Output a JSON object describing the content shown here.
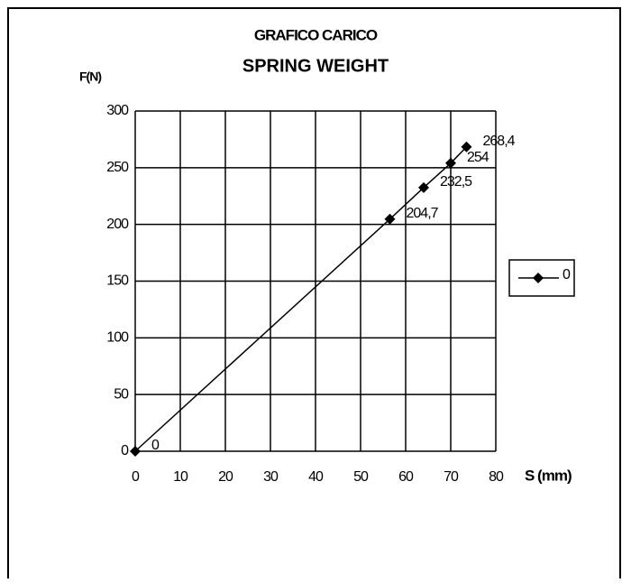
{
  "chart_data": {
    "type": "line",
    "title": "GRAFICO CARICO",
    "subtitle": "SPRING WEIGHT",
    "y_label": "F(N)",
    "x_label": "S (mm)",
    "x": [
      0,
      56.5,
      64,
      70,
      73.5
    ],
    "series": [
      {
        "name": "0",
        "color": "#000000",
        "values": [
          0,
          204.7,
          232.5,
          254,
          268.4
        ],
        "value_labels": [
          "0",
          "204,7",
          "232,5",
          "254",
          "268,4"
        ]
      }
    ],
    "xlim": [
      0,
      80
    ],
    "xticks": [
      0,
      10,
      20,
      30,
      40,
      50,
      60,
      70,
      80
    ],
    "ylim": [
      0,
      300
    ],
    "yticks": [
      0,
      50,
      100,
      150,
      200,
      250,
      300
    ],
    "grid": true,
    "legend": "right"
  }
}
